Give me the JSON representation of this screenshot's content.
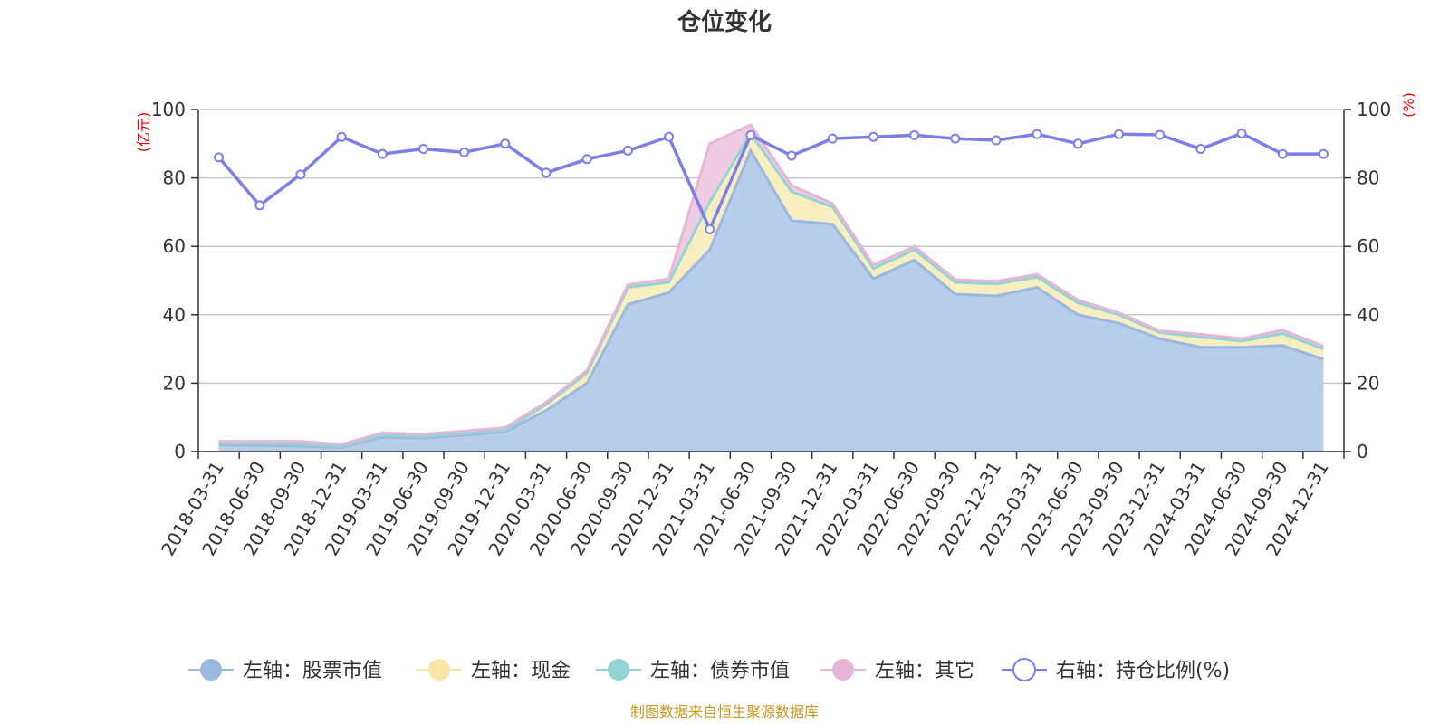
{
  "chart_data": {
    "type": "area",
    "title": "仓位变化",
    "left_unit": "(亿元)",
    "right_unit": "(%)",
    "ylim_left": [
      0,
      100
    ],
    "ylim_right": [
      0,
      100
    ],
    "left_ticks": [
      "0",
      "20",
      "40",
      "60",
      "80",
      "100"
    ],
    "right_ticks": [
      "0",
      "20",
      "40",
      "60",
      "80",
      "100"
    ],
    "categories": [
      "2018-03-31",
      "2018-06-30",
      "2018-09-30",
      "2018-12-31",
      "2019-03-31",
      "2019-06-30",
      "2019-09-30",
      "2019-12-31",
      "2020-03-31",
      "2020-06-30",
      "2020-09-30",
      "2020-12-31",
      "2021-03-31",
      "2021-06-30",
      "2021-09-30",
      "2021-12-31",
      "2022-03-31",
      "2022-06-30",
      "2022-09-30",
      "2022-12-31",
      "2023-03-31",
      "2023-06-30",
      "2023-09-30",
      "2023-12-31",
      "2024-03-31",
      "2024-06-30",
      "2024-09-30",
      "2024-12-31"
    ],
    "series": [
      {
        "name": "左轴：股票市值",
        "axis": "left",
        "stack": true,
        "color": "#9bb8e0",
        "fill": "#b7cdea",
        "values": [
          2.0,
          1.8,
          1.6,
          1.2,
          4.2,
          4.0,
          4.8,
          5.8,
          12.0,
          20.0,
          43.0,
          46.5,
          59.0,
          88.0,
          67.5,
          66.5,
          50.5,
          56.0,
          46.0,
          45.5,
          48.0,
          40.0,
          37.5,
          33.0,
          30.5,
          30.5,
          31.0,
          27.0
        ]
      },
      {
        "name": "左轴：现金",
        "axis": "left",
        "stack": true,
        "color": "#f7e6a5",
        "fill": "#f9eec0",
        "values": [
          0.5,
          0.5,
          0.6,
          0.4,
          0.6,
          0.5,
          0.5,
          0.5,
          1.8,
          3.0,
          5.0,
          3.0,
          14.0,
          5.0,
          8.5,
          5.0,
          3.0,
          3.0,
          3.5,
          3.5,
          3.0,
          3.5,
          2.5,
          1.8,
          3.0,
          1.8,
          3.5,
          3.0
        ]
      },
      {
        "name": "左轴：债券市值",
        "axis": "left",
        "stack": true,
        "color": "#92d3d3",
        "fill": "#b8e3e3",
        "values": [
          0,
          0,
          0,
          0,
          0,
          0,
          0,
          0,
          0,
          0,
          0,
          0,
          0,
          0,
          0,
          0,
          0,
          0,
          0,
          0,
          0,
          0,
          0,
          0,
          0,
          0,
          0,
          0
        ]
      },
      {
        "name": "左轴：其它",
        "axis": "left",
        "stack": true,
        "color": "#e6b5d8",
        "fill": "#f0cbe4",
        "values": [
          0.5,
          0.7,
          0.8,
          0.5,
          0.7,
          0.6,
          0.7,
          0.7,
          0.6,
          0.7,
          0.8,
          1.0,
          17.0,
          2.5,
          1.8,
          1.0,
          1.0,
          1.0,
          0.8,
          0.8,
          0.8,
          0.8,
          0.6,
          0.5,
          0.8,
          0.7,
          1.0,
          0.8
        ]
      },
      {
        "name": "右轴：持仓比例(%)",
        "axis": "right",
        "type": "line",
        "color": "#7b7fe8",
        "values": [
          86.0,
          72.0,
          81.0,
          92.0,
          87.0,
          88.5,
          87.5,
          90.0,
          81.5,
          85.5,
          88.0,
          92.0,
          65.0,
          92.5,
          86.5,
          91.5,
          92.0,
          92.5,
          91.5,
          91.0,
          92.8,
          90.0,
          92.8,
          92.6,
          88.5,
          93.0,
          87.0,
          87.0
        ]
      }
    ],
    "legend_position": "bottom",
    "grid": true,
    "source": "制图数据来自恒生聚源数据库"
  }
}
